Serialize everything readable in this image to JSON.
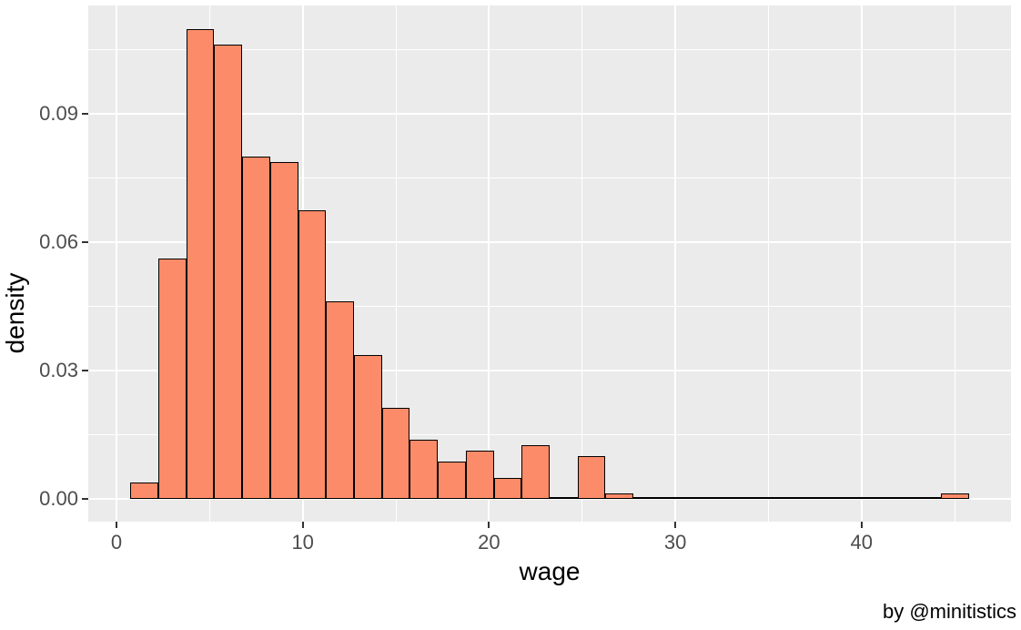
{
  "chart_data": {
    "type": "bar",
    "variant": "histogram",
    "title": "",
    "xlabel": "wage",
    "ylabel": "density",
    "caption": "by @minitistics",
    "bin_width": 1.5,
    "bin_start": 0.75,
    "bin_centers": [
      1.5,
      3.0,
      4.5,
      6.0,
      7.5,
      9.0,
      10.5,
      12.0,
      13.5,
      15.0,
      16.5,
      18.0,
      19.5,
      21.0,
      22.5,
      24.0,
      25.5,
      27.0,
      28.5,
      30.0,
      31.5,
      33.0,
      34.5,
      36.0,
      37.5,
      39.0,
      40.5,
      42.0,
      43.5,
      45.0
    ],
    "densities": [
      0.00375,
      0.05618,
      0.10986,
      0.10612,
      0.0799,
      0.07865,
      0.06742,
      0.04619,
      0.03371,
      0.02122,
      0.01373,
      0.00874,
      0.01124,
      0.00499,
      0.01248,
      0,
      0.00999,
      0.00125,
      0,
      0,
      0,
      0,
      0,
      0,
      0,
      0,
      0,
      0,
      0,
      0.00125
    ],
    "x_ticks": {
      "values": [
        0,
        10,
        20,
        30,
        40
      ],
      "labels": [
        "0",
        "10",
        "20",
        "30",
        "40"
      ]
    },
    "y_ticks": {
      "values": [
        0,
        0.03,
        0.06,
        0.09
      ],
      "labels": [
        "0.00",
        "0.03",
        "0.06",
        "0.09"
      ]
    },
    "x_minor_gridlines": [
      5,
      15,
      25,
      35,
      45
    ],
    "y_minor_gridlines": [
      0.015,
      0.045,
      0.075,
      0.105
    ],
    "xlim": [
      -1.51,
      48.02
    ],
    "ylim": [
      -0.0064,
      0.1156
    ],
    "grid": "white major and minor gridlines on gray panel",
    "legend": "none",
    "colors": {
      "bar_fill": "#FC8C69",
      "bar_stroke": "#000000",
      "panel_bg": "#EBEBEB",
      "gridline": "#FFFFFF",
      "tick_label": "#4D4D4D",
      "tick_mark": "#333333",
      "axis_title": "#000000",
      "caption": "#000000",
      "page_bg": "#FFFFFF"
    }
  }
}
